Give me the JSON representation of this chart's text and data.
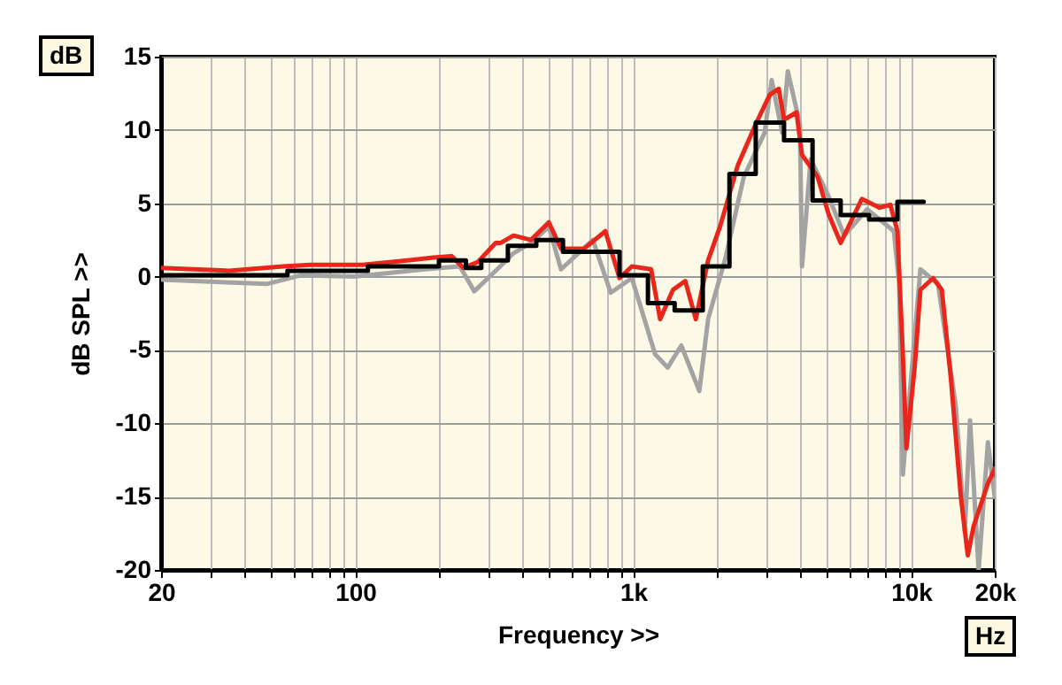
{
  "chart_data": {
    "type": "line",
    "xlabel": "Frequency >>",
    "ylabel": "dB SPL >>",
    "annotations": [
      "dB",
      "Hz"
    ],
    "log": "x",
    "grid": true,
    "xlim": [
      20,
      20000
    ],
    "ylim": [
      -20,
      15
    ],
    "xticks": [
      20,
      {
        "value": 30,
        "label": null
      },
      {
        "value": 40,
        "label": null
      },
      {
        "value": 50,
        "label": null
      },
      {
        "value": 60,
        "label": null
      },
      {
        "value": 70,
        "label": null
      },
      {
        "value": 80,
        "label": null
      },
      {
        "value": 90,
        "label": null
      },
      100,
      {
        "value": 200,
        "label": null
      },
      {
        "value": 300,
        "label": null
      },
      {
        "value": 400,
        "label": null
      },
      {
        "value": 500,
        "label": null
      },
      {
        "value": 600,
        "label": null
      },
      {
        "value": 700,
        "label": null
      },
      {
        "value": 800,
        "label": null
      },
      {
        "value": 900,
        "label": null
      },
      {
        "value": 1000,
        "label": "1k"
      },
      {
        "value": 2000,
        "label": null
      },
      {
        "value": 3000,
        "label": null
      },
      {
        "value": 4000,
        "label": null
      },
      {
        "value": 5000,
        "label": null
      },
      {
        "value": 6000,
        "label": null
      },
      {
        "value": 7000,
        "label": null
      },
      {
        "value": 8000,
        "label": null
      },
      {
        "value": 9000,
        "label": null
      },
      {
        "value": 10000,
        "label": "10k"
      },
      {
        "value": 20000,
        "label": "20k"
      }
    ],
    "yticks": [
      -20,
      -15,
      -10,
      -5,
      0,
      5,
      10,
      15
    ],
    "series": [
      {
        "color": "#a3a3a3",
        "x": [
          20,
          48,
          64,
          99,
          178,
          238,
          268,
          320,
          371,
          429,
          497,
          550,
          716,
          830,
          989,
          1200,
          1330,
          1490,
          1730,
          1860,
          2150,
          2500,
          2970,
          3150,
          3440,
          3600,
          3980,
          4050,
          4350,
          5040,
          5750,
          6950,
          8670,
          9060,
          9340,
          10800,
          12500,
          14500,
          15600,
          16300,
          17500,
          18900,
          20000
        ],
        "values": [
          -0.2,
          -0.5,
          0.1,
          0,
          0.5,
          0.7,
          -1,
          0.4,
          1.6,
          2.3,
          3.4,
          0.5,
          2.5,
          -1.1,
          -0.1,
          -5.3,
          -6.2,
          -4.7,
          -7.8,
          -2.9,
          1.3,
          6.8,
          9.8,
          13.4,
          9.8,
          14,
          10.4,
          0.7,
          8,
          5.5,
          2.8,
          4.6,
          3.1,
          -0.5,
          -13.5,
          0.5,
          -0.5,
          -8.9,
          -17.4,
          -9.8,
          -20,
          -11.3,
          -15
        ]
      },
      {
        "color": "#e8261c",
        "x": [
          20,
          35,
          55,
          69,
          106,
          154,
          191,
          222,
          245,
          276,
          320,
          334,
          371,
          429,
          497,
          550,
          665,
          794,
          893,
          989,
          1160,
          1250,
          1390,
          1540,
          1680,
          1860,
          2060,
          2380,
          2760,
          3100,
          3340,
          3490,
          3870,
          4050,
          4610,
          5040,
          5580,
          6650,
          7710,
          8420,
          8930,
          9340,
          9620,
          10300,
          10800,
          12000,
          12900,
          13900,
          15100,
          16000,
          16800,
          18900,
          20000
        ],
        "values": [
          0.6,
          0.4,
          0.7,
          0.8,
          0.8,
          1.1,
          1.3,
          1.4,
          0.6,
          1,
          2.3,
          2.3,
          2.8,
          2.5,
          3.7,
          1.9,
          1.9,
          3.1,
          -0.1,
          0.7,
          0.5,
          -2.9,
          -0.9,
          -0.3,
          -2.9,
          1.1,
          3.5,
          7.6,
          10.4,
          12.4,
          12.8,
          10.7,
          11.2,
          8.3,
          6.8,
          4.3,
          2.3,
          5.3,
          4.7,
          4.9,
          3.1,
          -5.3,
          -11.7,
          -6.2,
          -0.9,
          -0.1,
          -0.9,
          -6.9,
          -15,
          -19,
          -17,
          -14.1,
          -13.1
        ]
      },
      {
        "type": "step",
        "color": "#000000",
        "x": [
          20,
          57,
          111,
          200,
          250,
          284,
          354,
          448,
          559,
          893,
          1130,
          1410,
          1780,
          2220,
          2760,
          3490,
          4420,
          5580,
          7060,
          8930,
          11100
        ],
        "values": [
          0.1,
          0.4,
          0.7,
          1.1,
          0.6,
          1.1,
          2.1,
          2.5,
          1.7,
          0.1,
          -1.8,
          -2.3,
          0.7,
          7,
          10.5,
          9.3,
          5.2,
          4.2,
          3.9,
          5.1,
          5.1
        ]
      }
    ]
  }
}
